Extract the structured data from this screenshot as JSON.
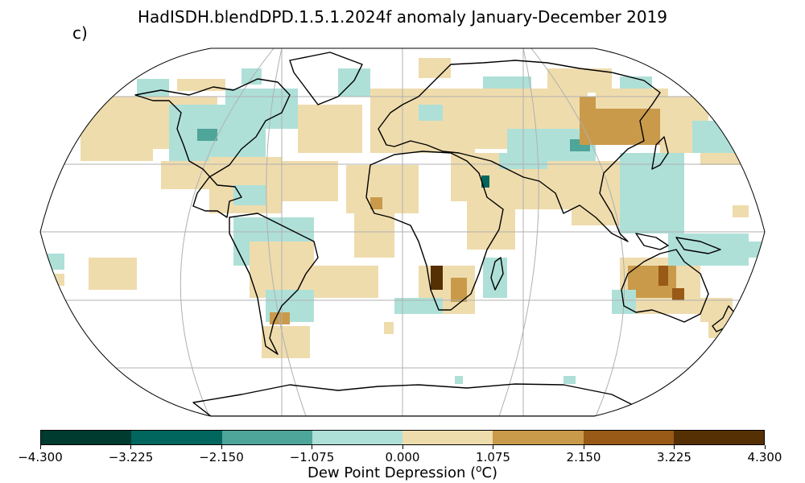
{
  "title": "HadISDH.blendDPD.1.5.1.2024f anomaly January-December 2019",
  "panel_label": "c)",
  "colorbar": {
    "label": "Dew Point Depression (°C)",
    "ticks": [
      "−4.300",
      "−3.225",
      "−2.150",
      "−1.075",
      "0.000",
      "1.075",
      "2.150",
      "3.225",
      "4.300"
    ],
    "colors": [
      "#003b30",
      "#01665e",
      "#4ea59a",
      "#aee0d8",
      "#efdcad",
      "#c99a4a",
      "#985a16",
      "#563005"
    ]
  },
  "map": {
    "projection": "Robinson",
    "ocean_color": "#ffffff",
    "land_outline": "#000000",
    "grid_color": "#b0b0b0"
  }
}
